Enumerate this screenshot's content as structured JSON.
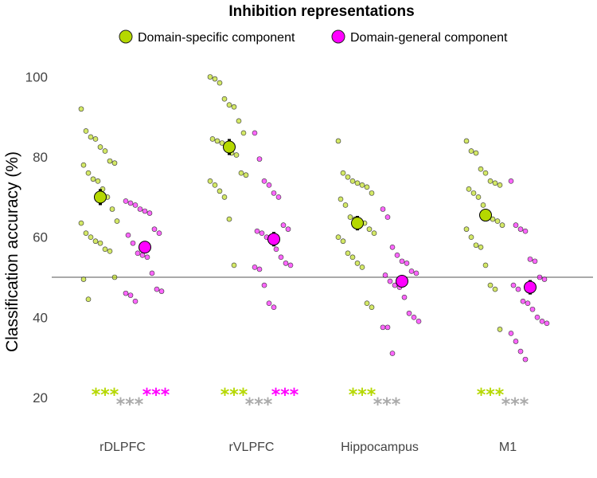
{
  "chart_data": {
    "type": "scatter",
    "title": "Inhibition representations",
    "ylabel": "Classification accuracy (%)",
    "ylim": [
      10,
      110
    ],
    "yticks": [
      20,
      40,
      60,
      80,
      100
    ],
    "chance_line": 50,
    "grid": false,
    "legend_position": "top",
    "categories": [
      "rDLPFC",
      "rVLPFC",
      "Hippocampus",
      "M1"
    ],
    "series": [
      {
        "name": "Domain-specific component",
        "color": "#b5d800",
        "means": [
          70.0,
          82.5,
          63.5,
          65.5
        ],
        "sem": [
          2.0,
          2.0,
          1.8,
          1.5
        ],
        "individual_points": [
          [
            92,
            86.5,
            85,
            84.5,
            82.5,
            81.5,
            79,
            78.5,
            78,
            76,
            74.5,
            74,
            72,
            70,
            67,
            64,
            63.5,
            61,
            60,
            59,
            58.5,
            57,
            56.5,
            50,
            49.5,
            44.5
          ],
          [
            100,
            99.5,
            98.5,
            94.5,
            93,
            92.5,
            89,
            86,
            84.5,
            84,
            83.5,
            82,
            81,
            80.5,
            76,
            75.5,
            74,
            73,
            71.5,
            70,
            64.5,
            53
          ],
          [
            84,
            76,
            75,
            74,
            73.5,
            73,
            72.5,
            71,
            69.5,
            68,
            65,
            64.5,
            64,
            63.5,
            62,
            61,
            60,
            59,
            56,
            55,
            53.5,
            52.5,
            43.5,
            42.5
          ],
          [
            84,
            81.5,
            81,
            77,
            76,
            74,
            73.5,
            73,
            72,
            71,
            70,
            68,
            66,
            64.5,
            64,
            63,
            62,
            60,
            58,
            57.5,
            53,
            48,
            47,
            37
          ]
        ],
        "significance": [
          "***",
          "***",
          "***",
          "***"
        ]
      },
      {
        "name": "Domain-general component",
        "color": "#ff00ff",
        "means": [
          57.5,
          59.5,
          49.0,
          47.5
        ],
        "sem": [
          1.5,
          1.8,
          1.5,
          1.8
        ],
        "individual_points": [
          [
            69,
            68.5,
            68,
            67,
            66.5,
            66,
            62,
            61,
            60.5,
            58.5,
            56,
            55.5,
            55,
            51,
            47,
            46.5,
            46,
            45.5,
            44
          ],
          [
            86,
            79.5,
            74,
            73,
            71,
            70,
            63,
            62,
            61.5,
            61,
            60,
            59,
            57,
            55,
            53.5,
            53,
            52.5,
            52,
            48,
            43.5,
            42.5
          ],
          [
            67,
            65,
            57.5,
            55.5,
            54,
            53.5,
            51.5,
            51,
            50.5,
            49,
            48,
            47.5,
            45,
            41,
            40,
            39,
            37.5,
            37.5,
            31
          ],
          [
            74,
            63,
            62,
            61.5,
            54.5,
            54,
            50,
            49.5,
            48,
            47,
            44,
            43.5,
            42,
            40,
            39,
            38.5,
            36,
            34,
            31.5,
            29.5
          ]
        ],
        "significance": [
          "***",
          "***",
          "***",
          "***"
        ]
      }
    ],
    "comparison_significance": [
      "***",
      "***",
      "***",
      "***"
    ],
    "comparison_color": "#aaaaaa"
  }
}
